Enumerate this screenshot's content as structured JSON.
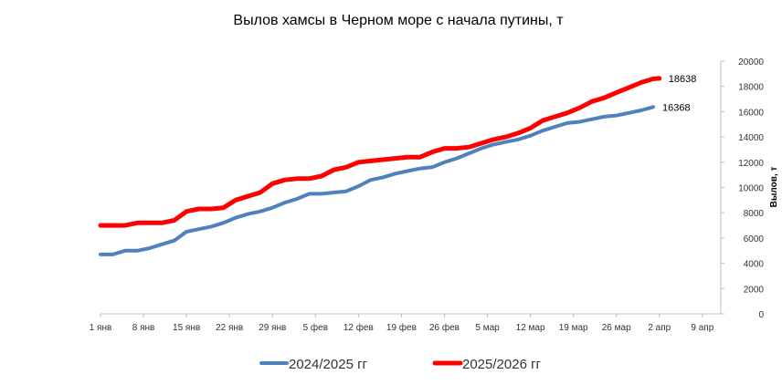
{
  "chart_data": {
    "type": "line",
    "title": "Вылов хамсы в Черном море с начала путины, т",
    "xlabel": "",
    "ylabel": "Вылов, т",
    "ylim": [
      0,
      20000
    ],
    "yticks": [
      "0",
      "2000",
      "4000",
      "6000",
      "8000",
      "10000",
      "12000",
      "14000",
      "16000",
      "18000",
      "20000"
    ],
    "xlim": [
      0,
      101
    ],
    "xticks": [
      {
        "x": 0,
        "label": "1 янв"
      },
      {
        "x": 7,
        "label": "8 янв"
      },
      {
        "x": 14,
        "label": "15 янв"
      },
      {
        "x": 21,
        "label": "22 янв"
      },
      {
        "x": 28,
        "label": "29 янв"
      },
      {
        "x": 35,
        "label": "5 фев"
      },
      {
        "x": 42,
        "label": "12 фев"
      },
      {
        "x": 49,
        "label": "19 фев"
      },
      {
        "x": 56,
        "label": "26 фев"
      },
      {
        "x": 63,
        "label": "5 мар"
      },
      {
        "x": 70,
        "label": "12 мар"
      },
      {
        "x": 77,
        "label": "19 мар"
      },
      {
        "x": 84,
        "label": "26 мар"
      },
      {
        "x": 91,
        "label": "2 апр"
      },
      {
        "x": 98,
        "label": "9 апр"
      }
    ],
    "y_axis_side": "right",
    "grid": false,
    "legend_position": "bottom",
    "series": [
      {
        "name": "2024/2025 гг",
        "color": "#4f81bd",
        "end_label": "16368",
        "points": [
          [
            0,
            4700
          ],
          [
            2,
            4700
          ],
          [
            4,
            5000
          ],
          [
            6,
            5000
          ],
          [
            8,
            5200
          ],
          [
            10,
            5500
          ],
          [
            12,
            5800
          ],
          [
            14,
            6500
          ],
          [
            16,
            6700
          ],
          [
            18,
            6900
          ],
          [
            20,
            7200
          ],
          [
            22,
            7600
          ],
          [
            24,
            7900
          ],
          [
            26,
            8100
          ],
          [
            28,
            8400
          ],
          [
            30,
            8800
          ],
          [
            32,
            9100
          ],
          [
            34,
            9500
          ],
          [
            36,
            9500
          ],
          [
            38,
            9600
          ],
          [
            40,
            9700
          ],
          [
            42,
            10100
          ],
          [
            44,
            10600
          ],
          [
            46,
            10800
          ],
          [
            48,
            11100
          ],
          [
            50,
            11300
          ],
          [
            52,
            11500
          ],
          [
            54,
            11600
          ],
          [
            56,
            12000
          ],
          [
            58,
            12300
          ],
          [
            60,
            12700
          ],
          [
            62,
            13100
          ],
          [
            64,
            13400
          ],
          [
            66,
            13600
          ],
          [
            68,
            13800
          ],
          [
            70,
            14100
          ],
          [
            72,
            14500
          ],
          [
            74,
            14800
          ],
          [
            76,
            15100
          ],
          [
            78,
            15200
          ],
          [
            80,
            15400
          ],
          [
            82,
            15600
          ],
          [
            84,
            15700
          ],
          [
            86,
            15900
          ],
          [
            88,
            16100
          ],
          [
            90,
            16368
          ]
        ]
      },
      {
        "name": "2025/2026 гг",
        "color": "#ff0000",
        "end_label": "18638",
        "points": [
          [
            0,
            7000
          ],
          [
            2,
            7000
          ],
          [
            4,
            7000
          ],
          [
            6,
            7200
          ],
          [
            8,
            7200
          ],
          [
            10,
            7200
          ],
          [
            12,
            7400
          ],
          [
            14,
            8100
          ],
          [
            16,
            8300
          ],
          [
            18,
            8300
          ],
          [
            20,
            8400
          ],
          [
            22,
            9000
          ],
          [
            24,
            9300
          ],
          [
            26,
            9600
          ],
          [
            28,
            10300
          ],
          [
            30,
            10600
          ],
          [
            32,
            10700
          ],
          [
            34,
            10700
          ],
          [
            36,
            10900
          ],
          [
            38,
            11400
          ],
          [
            40,
            11600
          ],
          [
            42,
            12000
          ],
          [
            44,
            12100
          ],
          [
            46,
            12200
          ],
          [
            48,
            12300
          ],
          [
            50,
            12400
          ],
          [
            52,
            12400
          ],
          [
            54,
            12800
          ],
          [
            56,
            13100
          ],
          [
            58,
            13100
          ],
          [
            60,
            13200
          ],
          [
            62,
            13500
          ],
          [
            64,
            13800
          ],
          [
            66,
            14000
          ],
          [
            68,
            14300
          ],
          [
            70,
            14700
          ],
          [
            72,
            15300
          ],
          [
            74,
            15600
          ],
          [
            76,
            15900
          ],
          [
            78,
            16300
          ],
          [
            80,
            16800
          ],
          [
            82,
            17100
          ],
          [
            84,
            17500
          ],
          [
            86,
            17900
          ],
          [
            88,
            18300
          ],
          [
            90,
            18600
          ],
          [
            91,
            18638
          ]
        ]
      }
    ]
  }
}
